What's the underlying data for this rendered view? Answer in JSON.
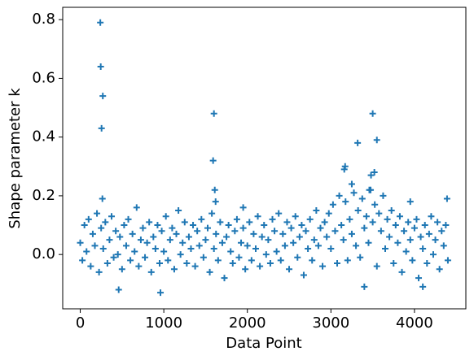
{
  "chart_data": {
    "type": "scatter",
    "xlabel": "Data Point",
    "ylabel": "Shape parameter k",
    "xlim": [
      -210,
      4615
    ],
    "ylim": [
      -0.185,
      0.842
    ],
    "xticks": [
      0,
      1000,
      2000,
      3000,
      4000
    ],
    "yticks": [
      {
        "value": 0,
        "label": "0.0"
      },
      0.2,
      0.4,
      0.6,
      0.8
    ],
    "marker": "+",
    "color": "#1f77b4",
    "x": [
      0,
      25,
      50,
      75,
      100,
      125,
      150,
      175,
      200,
      225,
      250,
      275,
      300,
      325,
      350,
      375,
      400,
      425,
      450,
      475,
      500,
      525,
      550,
      575,
      600,
      625,
      650,
      675,
      700,
      725,
      750,
      775,
      800,
      825,
      850,
      875,
      900,
      925,
      950,
      975,
      1000,
      1025,
      1050,
      1075,
      1100,
      1125,
      1150,
      1175,
      1200,
      1225,
      1250,
      1275,
      1300,
      1325,
      1350,
      1375,
      1400,
      1425,
      1450,
      1475,
      1500,
      1525,
      1550,
      1575,
      1600,
      1625,
      1650,
      1675,
      1700,
      1725,
      1750,
      1775,
      1800,
      1825,
      1850,
      1875,
      1900,
      1925,
      1950,
      1975,
      2000,
      2025,
      2050,
      2075,
      2100,
      2125,
      2150,
      2175,
      2200,
      2225,
      2250,
      2275,
      2300,
      2325,
      2350,
      2375,
      2400,
      2425,
      2450,
      2475,
      2500,
      2525,
      2550,
      2575,
      2600,
      2625,
      2650,
      2675,
      2700,
      2725,
      2750,
      2775,
      2800,
      2825,
      2850,
      2875,
      2900,
      2925,
      2950,
      2975,
      3000,
      3025,
      3050,
      3075,
      3100,
      3125,
      3150,
      3175,
      3200,
      3225,
      3250,
      3275,
      3300,
      3325,
      3350,
      3375,
      3400,
      3425,
      3450,
      3475,
      3500,
      3525,
      3550,
      3575,
      3600,
      3625,
      3650,
      3675,
      3700,
      3725,
      3750,
      3775,
      3800,
      3825,
      3850,
      3875,
      3900,
      3925,
      3950,
      3975,
      4000,
      4025,
      4050,
      4075,
      4100,
      4125,
      4150,
      4175,
      4200,
      4225,
      4250,
      4275,
      4300,
      4325,
      4350,
      4375,
      4400,
      240,
      245,
      270,
      255,
      265,
      1600,
      1590,
      1610,
      1620,
      3170,
      3160,
      3320,
      3500,
      3550,
      3480,
      3520,
      3400,
      960,
      460,
      4100,
      4390,
      1950,
      3950,
      3250,
      3460
    ],
    "y": [
      0.04,
      -0.02,
      0.1,
      0.01,
      0.12,
      -0.04,
      0.07,
      0.03,
      0.14,
      -0.06,
      0.09,
      0.02,
      0.11,
      -0.03,
      0.05,
      0.13,
      -0.01,
      0.08,
      0.0,
      0.06,
      -0.05,
      0.1,
      0.03,
      0.12,
      -0.02,
      0.07,
      0.01,
      0.16,
      -0.04,
      0.05,
      0.09,
      -0.01,
      0.04,
      0.11,
      -0.06,
      0.06,
      0.02,
      0.1,
      -0.03,
      0.08,
      0.01,
      0.13,
      -0.02,
      0.05,
      0.09,
      -0.05,
      0.07,
      0.15,
      0.0,
      0.04,
      0.11,
      -0.03,
      0.06,
      0.02,
      0.1,
      -0.04,
      0.08,
      0.03,
      0.12,
      -0.01,
      0.05,
      0.09,
      -0.06,
      0.14,
      0.02,
      0.07,
      -0.02,
      0.11,
      0.04,
      -0.08,
      0.06,
      0.1,
      0.01,
      -0.03,
      0.08,
      0.12,
      -0.01,
      0.04,
      0.09,
      -0.05,
      0.03,
      0.11,
      -0.02,
      0.07,
      0.02,
      0.13,
      -0.04,
      0.06,
      0.1,
      0.0,
      0.05,
      -0.03,
      0.12,
      0.08,
      0.01,
      0.14,
      -0.02,
      0.07,
      0.03,
      0.11,
      -0.05,
      0.09,
      0.04,
      0.13,
      -0.01,
      0.06,
      0.1,
      -0.07,
      0.08,
      0.02,
      0.12,
      -0.02,
      0.05,
      0.15,
      0.03,
      0.09,
      -0.04,
      0.11,
      0.06,
      0.14,
      0.02,
      0.17,
      0.08,
      -0.03,
      0.2,
      0.1,
      0.05,
      0.18,
      -0.02,
      0.12,
      0.07,
      0.21,
      0.03,
      0.15,
      -0.01,
      0.19,
      0.09,
      0.13,
      0.04,
      0.22,
      0.11,
      0.17,
      -0.04,
      0.14,
      0.08,
      0.2,
      0.02,
      0.12,
      0.06,
      0.15,
      -0.03,
      0.1,
      0.04,
      0.13,
      -0.06,
      0.08,
      0.01,
      0.11,
      0.05,
      -0.02,
      0.09,
      0.12,
      -0.08,
      0.06,
      0.02,
      0.1,
      -0.03,
      0.07,
      0.13,
      0.0,
      0.05,
      0.11,
      -0.05,
      0.08,
      0.03,
      0.1,
      -0.02,
      0.79,
      0.64,
      0.54,
      0.43,
      0.19,
      0.48,
      0.32,
      0.22,
      0.18,
      0.3,
      0.29,
      0.38,
      0.48,
      0.39,
      0.27,
      0.28,
      -0.11,
      -0.13,
      -0.12,
      -0.11,
      0.19,
      0.16,
      0.18,
      0.24,
      0.22
    ]
  }
}
